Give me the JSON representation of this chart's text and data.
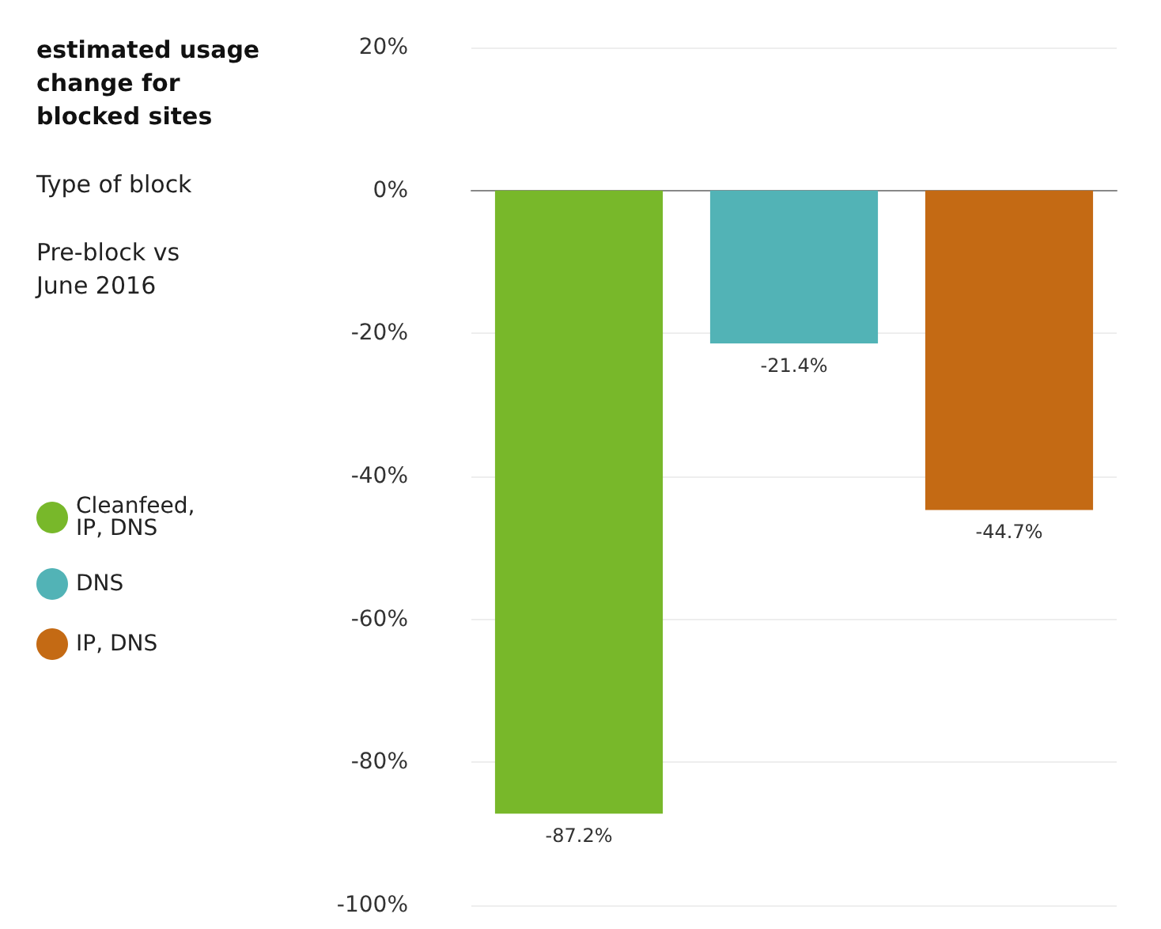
{
  "chart_data": {
    "type": "bar",
    "title": "estimated usage change for blocked sites",
    "legend_title": "Type of block",
    "subtitle": "Pre-block vs June 2016",
    "categories": [
      null,
      null,
      null
    ],
    "series": [
      {
        "name": "Cleanfeed, IP, DNS",
        "color": "#78b82a",
        "values": [
          -87.2,
          null,
          null
        ],
        "value_labels": [
          "-87.2%",
          null,
          null
        ]
      },
      {
        "name": "DNS",
        "color": "#52b3b6",
        "values": [
          null,
          -21.4,
          null
        ],
        "value_labels": [
          null,
          "-21.4%",
          null
        ]
      },
      {
        "name": "IP, DNS",
        "color": "#c46a14",
        "values": [
          null,
          null,
          -44.7
        ],
        "value_labels": [
          null,
          null,
          "-44.7%"
        ]
      }
    ],
    "ylim": [
      -100,
      20
    ],
    "yticks": [
      {
        "value": -100,
        "label": "-100%"
      },
      {
        "value": -80,
        "label": "-80%"
      },
      {
        "value": -60,
        "label": "-60%"
      },
      {
        "value": -40,
        "label": "-40%"
      },
      {
        "value": -20,
        "label": "-20%"
      },
      {
        "value": 0,
        "label": "0%"
      },
      {
        "value": 20,
        "label": "20%"
      }
    ],
    "grid": "y",
    "legend": "left",
    "tick_labels": "y"
  }
}
